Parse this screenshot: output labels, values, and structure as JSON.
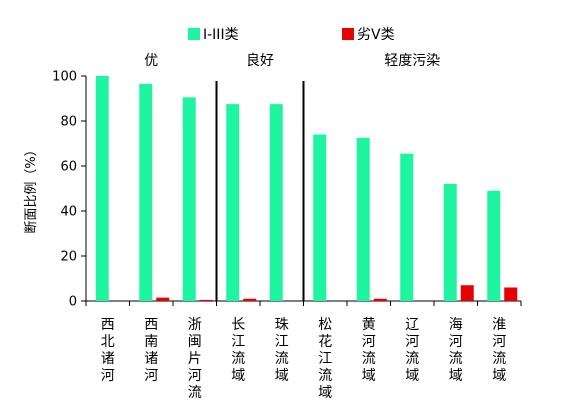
{
  "chart_data": {
    "type": "bar",
    "ylabel": "断面比例（%）",
    "ylim": [
      0,
      100
    ],
    "yticks": [
      0,
      20,
      40,
      60,
      80,
      100
    ],
    "grid": false,
    "legend_position": "top",
    "categories": [
      "西北诸河",
      "西南诸河",
      "浙闽片河流",
      "长江流域",
      "珠江流域",
      "松花江流域",
      "黄河流域",
      "辽河流域",
      "海河流域",
      "淮河流域"
    ],
    "series": [
      {
        "name": "I-III类",
        "color": "#1EF5A0",
        "values": [
          100,
          96.5,
          90.5,
          87.5,
          87.5,
          74,
          72.5,
          65.5,
          52,
          49
        ]
      },
      {
        "name": "劣V类",
        "color": "#E60000",
        "values": [
          0,
          1.5,
          0.5,
          1,
          0,
          0,
          1,
          0,
          7,
          6
        ]
      }
    ],
    "groups": [
      {
        "label": "优",
        "categories": [
          "西北诸河",
          "西南诸河",
          "浙闽片河流"
        ]
      },
      {
        "label": "良好",
        "categories": [
          "长江流域",
          "珠江流域"
        ]
      },
      {
        "label": "轻度污染",
        "categories": [
          "松花江流域",
          "黄河流域",
          "辽河流域",
          "海河流域",
          "淮河流域"
        ]
      }
    ]
  }
}
